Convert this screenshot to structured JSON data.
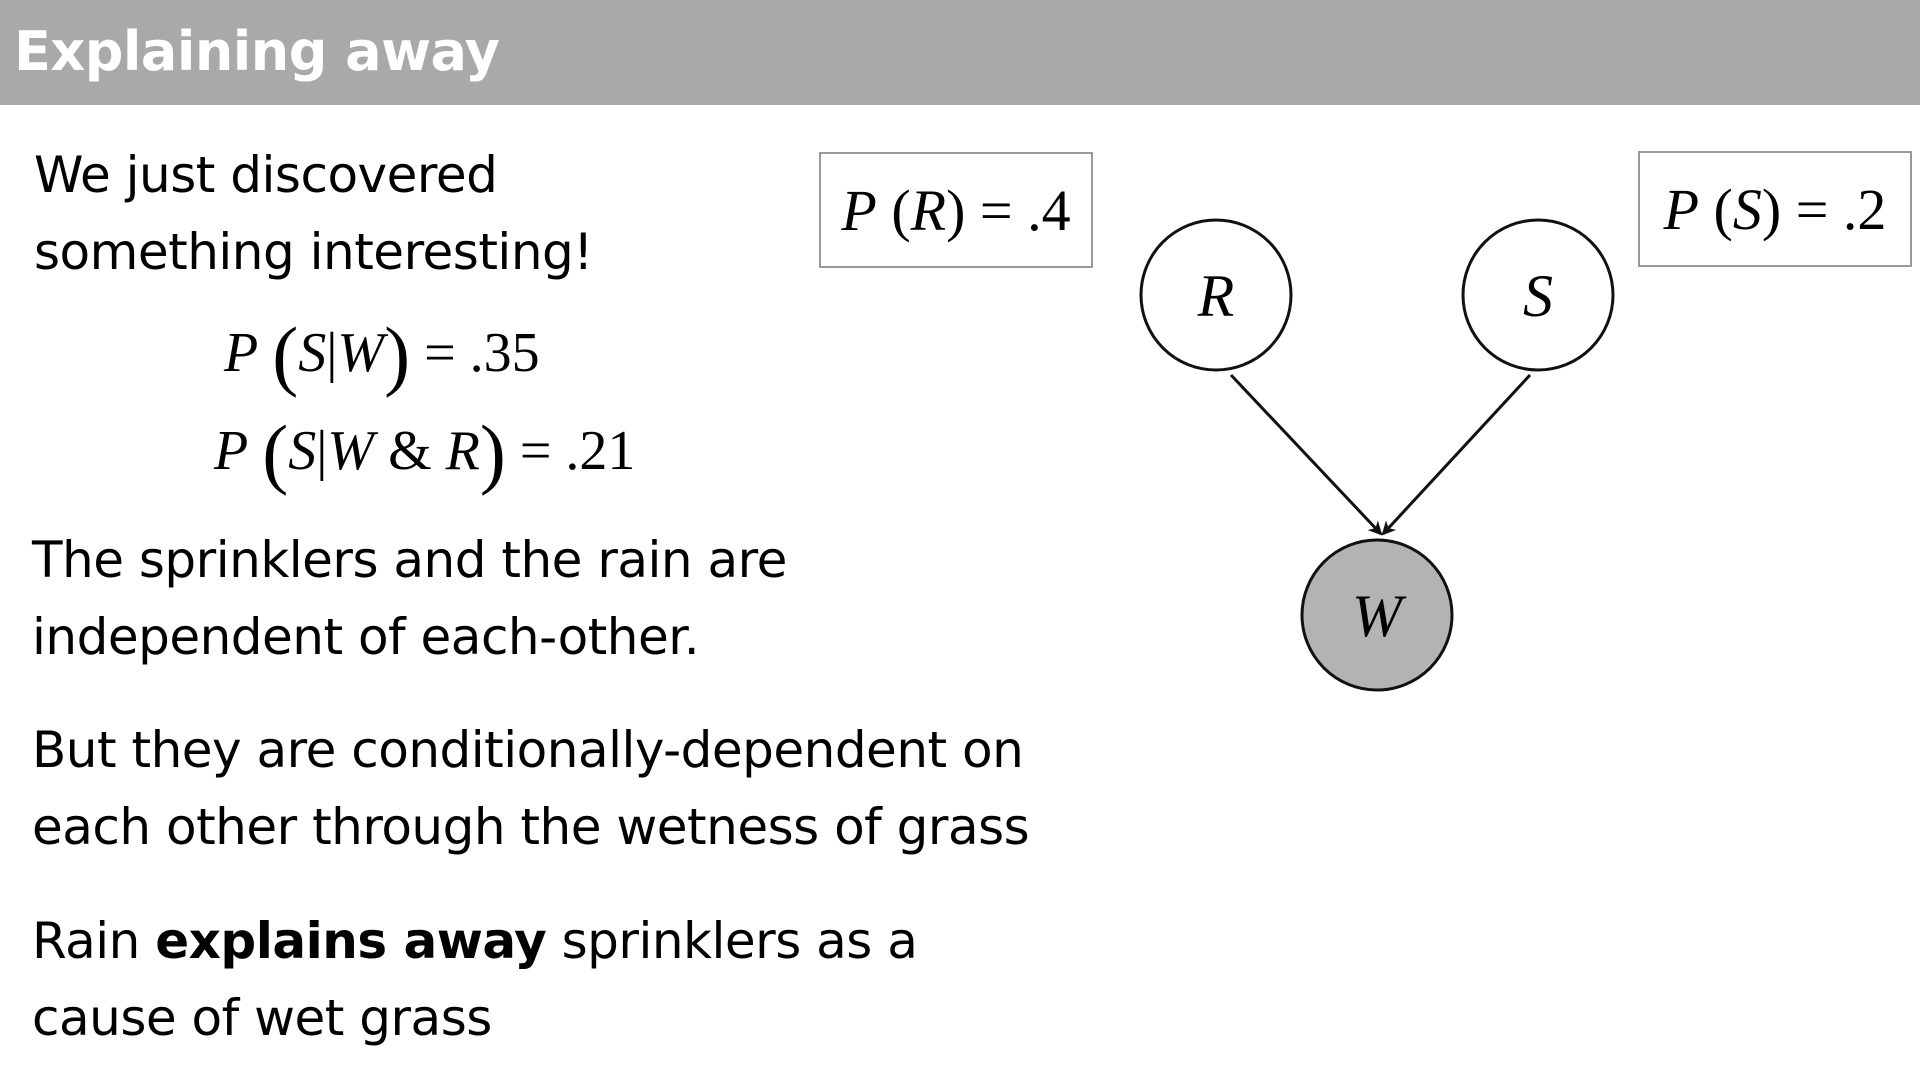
{
  "header": {
    "title": "Explaining away"
  },
  "intro": {
    "line1": "We just discovered",
    "line2": "something interesting!"
  },
  "equations": {
    "eq1": {
      "P": "P",
      "S": "S",
      "bar": "|",
      "W": "W",
      "rhs": "= .35"
    },
    "eq2": {
      "P": "P",
      "S": "S",
      "bar": "|",
      "W": "W",
      "amp": "&",
      "R": "R",
      "rhs": "= .21"
    }
  },
  "priors": {
    "rain": {
      "P": "P",
      "var": "R",
      "rhs": "= .4"
    },
    "sprinkler": {
      "P": "P",
      "var": "S",
      "rhs": "= .2"
    }
  },
  "paragraphs": {
    "p1": {
      "line1": "The sprinklers and the rain are",
      "line2": "independent of each-other."
    },
    "p2": {
      "line1": "But they are conditionally-dependent on",
      "line2": "each other through the wetness of grass"
    },
    "p3": {
      "pre": "Rain ",
      "bold": "explains away",
      "post": " sprinklers as a",
      "line2": "cause of wet grass"
    }
  },
  "diagram": {
    "nodes": [
      {
        "id": "R",
        "label": "R",
        "observed": false
      },
      {
        "id": "S",
        "label": "S",
        "observed": false
      },
      {
        "id": "W",
        "label": "W",
        "observed": true
      }
    ],
    "edges": [
      {
        "from": "R",
        "to": "W"
      },
      {
        "from": "S",
        "to": "W"
      }
    ],
    "colors": {
      "observed_fill": "#b3b3b3",
      "unobserved_fill": "#ffffff",
      "stroke": "#111111"
    }
  }
}
